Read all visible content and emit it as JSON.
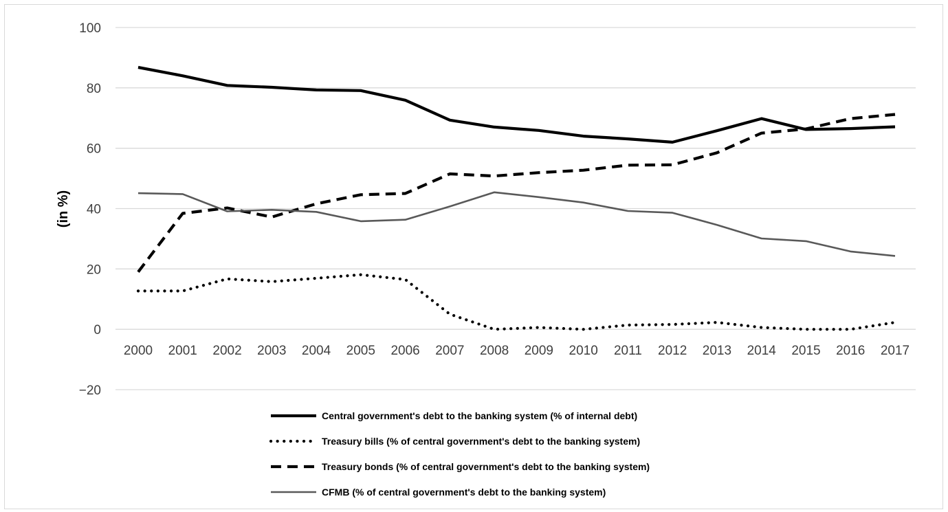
{
  "chart_data": {
    "type": "line",
    "title": "",
    "xlabel": "",
    "ylabel": "(in %)",
    "ylim": [
      -20,
      100
    ],
    "yticks": [
      -20,
      0,
      20,
      40,
      60,
      80,
      100
    ],
    "ytick_labels": [
      "−20",
      "0",
      "20",
      "40",
      "60",
      "80",
      "100"
    ],
    "grid": "horizontal",
    "legend_position": "bottom",
    "x": [
      "2000",
      "2001",
      "2002",
      "2003",
      "2004",
      "2005",
      "2006",
      "2007",
      "2008",
      "2009",
      "2010",
      "2011",
      "2012",
      "2013",
      "2014",
      "2015",
      "2016",
      "2017"
    ],
    "series": [
      {
        "name": "Central government's debt to the banking system (% of internal debt)",
        "style": "solid-thick",
        "color": "#000000",
        "values": [
          86.8,
          84.0,
          80.8,
          80.2,
          79.3,
          79.1,
          75.9,
          69.3,
          67.0,
          65.9,
          64.0,
          63.1,
          62.0,
          65.8,
          69.8,
          66.2,
          66.5,
          67.1
        ]
      },
      {
        "name": "Treasury bills (% of central government's debt to the banking system)",
        "style": "dotted",
        "color": "#000000",
        "values": [
          12.7,
          12.7,
          16.7,
          15.8,
          16.9,
          18.1,
          16.5,
          5.0,
          0.0,
          0.6,
          0.0,
          1.4,
          1.6,
          2.3,
          0.6,
          0.0,
          0.0,
          2.3
        ]
      },
      {
        "name": "Treasury bonds (% of central government's debt to the banking system)",
        "style": "dashed",
        "color": "#000000",
        "values": [
          19.0,
          38.4,
          40.2,
          37.2,
          41.6,
          44.6,
          45.0,
          51.5,
          50.8,
          51.9,
          52.7,
          54.4,
          54.5,
          58.5,
          65.0,
          66.4,
          69.8,
          71.2
        ]
      },
      {
        "name": "CFMB (% of central government's debt to the banking system)",
        "style": "solid-thin",
        "color": "#595959",
        "values": [
          45.1,
          44.8,
          39.1,
          39.6,
          38.9,
          35.8,
          36.3,
          40.7,
          45.4,
          43.8,
          42.0,
          39.2,
          38.6,
          34.6,
          30.1,
          29.2,
          25.8,
          24.3
        ]
      }
    ]
  }
}
